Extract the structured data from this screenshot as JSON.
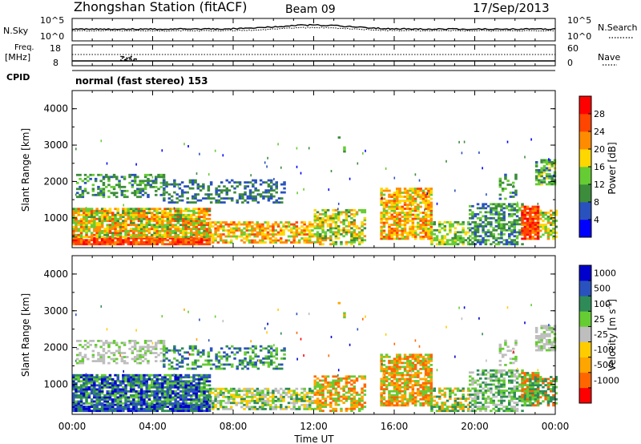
{
  "header": {
    "title": "Zhongshan Station (fitACF)",
    "beam": "Beam 09",
    "date": "17/Sep/2013"
  },
  "strips": {
    "nsky_label": "N.Sky",
    "nsky_ticks": [
      "10^5",
      "10^0"
    ],
    "nsearch_label": "N.Search",
    "nsearch_ticks": [
      "10^5",
      "10^0"
    ],
    "freq_label_1": "Freq.",
    "freq_label_2": "[MHz]",
    "freq_ticks": [
      "18",
      "8"
    ],
    "nave_label": "Nave",
    "nave_ticks": [
      "60",
      "0"
    ],
    "cpid_label": "CPID",
    "cpid_value": "normal (fast stereo) 153"
  },
  "colors": {
    "power": [
      "#0000ff",
      "#2a52be",
      "#3c8c3c",
      "#66cc33",
      "#ffd700",
      "#ff8c00",
      "#ff4500",
      "#ff0000"
    ],
    "velocity": [
      "#ff0000",
      "#ff6600",
      "#ffa500",
      "#ffcc00",
      "#bebebe",
      "#66cc33",
      "#2e8b57",
      "#2a52be",
      "#0000cc"
    ]
  },
  "chart_data": [
    {
      "type": "heatmap",
      "name": "power",
      "ylabel": "Slant Range [km]",
      "yticks": [
        "1000",
        "2000",
        "3000",
        "4000"
      ],
      "ylim": [
        180,
        4500
      ],
      "x_range_hours": [
        0,
        24
      ],
      "colorbar_label": "Power [dB]",
      "colorbar_ticks": [
        "4",
        "8",
        "12",
        "16",
        "20",
        "24",
        "28"
      ],
      "colorbar_range": [
        0,
        32
      ]
    },
    {
      "type": "heatmap",
      "name": "velocity",
      "ylabel": "Slant Range [km]",
      "yticks": [
        "1000",
        "2000",
        "3000",
        "4000"
      ],
      "ylim": [
        180,
        4500
      ],
      "x_range_hours": [
        0,
        24
      ],
      "colorbar_label_1": "Velocity  [m s",
      "colorbar_label_sup": "-1",
      "colorbar_label_2": "]",
      "colorbar_ticks": [
        "1000",
        "500",
        "100",
        "25",
        "-25",
        "-100",
        "-500",
        "-1000"
      ]
    }
  ],
  "xaxis": {
    "ticks": [
      "00:00",
      "04:00",
      "08:00",
      "12:00",
      "16:00",
      "20:00",
      "00:00"
    ],
    "label": "Time UT"
  }
}
